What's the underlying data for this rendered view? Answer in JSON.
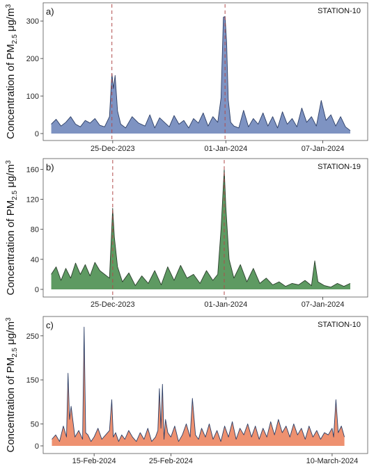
{
  "chart_data": [
    {
      "type": "area",
      "panel_label": "a)",
      "station": "STATION-10",
      "ylabel": "Concentration of PM2.5 μg/m3",
      "ylabel_parts": {
        "base": "Concentration of PM",
        "sub": "2.5",
        "unit": "μg/m",
        "sup": "3"
      },
      "ylim": [
        0,
        330
      ],
      "yticks": [
        0,
        100,
        200,
        300
      ],
      "x_range": [
        0,
        19
      ],
      "xticks": [
        {
          "x": 4.0,
          "label": "25-Dec-2023"
        },
        {
          "x": 11.0,
          "label": "01-Jan-2024"
        },
        {
          "x": 17.0,
          "label": "07-Jan-2024"
        }
      ],
      "vlines": [
        3.95,
        10.95
      ],
      "fill": "#7E93C2",
      "stroke": "#2C3E66",
      "x": [
        0.2,
        0.5,
        0.8,
        1.1,
        1.4,
        1.7,
        2.0,
        2.3,
        2.6,
        2.9,
        3.2,
        3.5,
        3.8,
        3.95,
        4.05,
        4.15,
        4.3,
        4.5,
        4.8,
        5.2,
        5.6,
        6.0,
        6.3,
        6.6,
        6.9,
        7.2,
        7.5,
        7.8,
        8.1,
        8.4,
        8.7,
        9.0,
        9.3,
        9.6,
        9.9,
        10.2,
        10.5,
        10.7,
        10.85,
        10.95,
        11.05,
        11.15,
        11.3,
        11.5,
        11.8,
        12.1,
        12.4,
        12.7,
        13.0,
        13.3,
        13.6,
        13.9,
        14.2,
        14.5,
        14.8,
        15.1,
        15.4,
        15.7,
        16.0,
        16.3,
        16.6,
        16.9,
        17.2,
        17.5,
        17.8,
        18.1,
        18.4,
        18.7
      ],
      "y": [
        25,
        38,
        20,
        30,
        45,
        25,
        18,
        35,
        28,
        40,
        22,
        18,
        45,
        160,
        120,
        155,
        60,
        25,
        15,
        45,
        28,
        20,
        50,
        15,
        42,
        30,
        18,
        48,
        25,
        35,
        15,
        40,
        28,
        55,
        20,
        45,
        30,
        95,
        310,
        312,
        240,
        90,
        30,
        20,
        15,
        62,
        18,
        40,
        25,
        55,
        20,
        45,
        15,
        58,
        25,
        40,
        18,
        68,
        30,
        45,
        20,
        88,
        35,
        50,
        20,
        45,
        18,
        8
      ]
    },
    {
      "type": "area",
      "panel_label": "b)",
      "station": "STATION-19",
      "ylabel": "Concentration of PM2.5 μg/m3",
      "ylabel_parts": {
        "base": "Concentration of PM",
        "sub": "2.5",
        "unit": "μg/m",
        "sup": "3"
      },
      "ylim": [
        0,
        165
      ],
      "yticks": [
        0,
        40,
        80,
        120,
        160
      ],
      "x_range": [
        0,
        19
      ],
      "xticks": [
        {
          "x": 4.0,
          "label": "25-Dec-2023"
        },
        {
          "x": 11.0,
          "label": "01-Jan-2024"
        },
        {
          "x": 17.0,
          "label": "07-Jan-2024"
        }
      ],
      "vlines": [
        4.0,
        10.9
      ],
      "fill": "#5E9A62",
      "stroke": "#2A3F2C",
      "x": [
        0.2,
        0.5,
        0.8,
        1.1,
        1.4,
        1.7,
        2.0,
        2.3,
        2.6,
        2.9,
        3.2,
        3.5,
        3.8,
        4.0,
        4.1,
        4.3,
        4.6,
        5.0,
        5.4,
        5.8,
        6.2,
        6.6,
        7.0,
        7.4,
        7.8,
        8.2,
        8.6,
        9.0,
        9.4,
        9.8,
        10.2,
        10.5,
        10.7,
        10.9,
        11.0,
        11.2,
        11.5,
        11.9,
        12.3,
        12.7,
        13.1,
        13.5,
        13.9,
        14.3,
        14.7,
        15.1,
        15.5,
        15.9,
        16.3,
        16.5,
        16.7,
        17.1,
        17.5,
        17.9,
        18.3,
        18.7
      ],
      "y": [
        20,
        30,
        12,
        28,
        15,
        35,
        20,
        33,
        18,
        36,
        25,
        20,
        15,
        108,
        70,
        30,
        10,
        22,
        5,
        18,
        8,
        25,
        6,
        30,
        12,
        32,
        15,
        20,
        8,
        25,
        12,
        20,
        80,
        160,
        110,
        40,
        15,
        33,
        10,
        28,
        8,
        15,
        6,
        10,
        4,
        8,
        6,
        12,
        5,
        38,
        10,
        5,
        3,
        8,
        4,
        8
      ]
    },
    {
      "type": "area",
      "panel_label": "c)",
      "station": "STATION-10",
      "ylabel": "Concentration of PM2.5 μg/m3",
      "ylabel_parts": {
        "base": "Concentration of PM",
        "sub": "2.5",
        "unit": "μg/m",
        "sup": "3"
      },
      "ylim": [
        0,
        275
      ],
      "yticks": [
        0,
        50,
        150,
        250
      ],
      "x_range": [
        0,
        40
      ],
      "xticks": [
        {
          "x": 6.0,
          "label": "15-Feb-2024"
        },
        {
          "x": 16.0,
          "label": "25-Feb-2024"
        },
        {
          "x": 37.0,
          "label": "10-March-2024"
        }
      ],
      "vlines": [],
      "fill": "#EE9170",
      "stroke": "#2C3E66",
      "x": [
        0.5,
        1.0,
        1.5,
        2.0,
        2.4,
        2.6,
        2.8,
        3.0,
        3.5,
        4.0,
        4.5,
        4.7,
        4.9,
        5.2,
        5.6,
        6.0,
        6.5,
        7.0,
        7.5,
        8.0,
        8.3,
        8.5,
        8.8,
        9.2,
        9.6,
        10.0,
        10.5,
        11.0,
        11.5,
        12.0,
        12.5,
        13.0,
        13.5,
        14.0,
        14.3,
        14.5,
        14.7,
        14.9,
        15.1,
        15.3,
        15.6,
        16.0,
        16.5,
        17.0,
        17.5,
        18.0,
        18.5,
        18.8,
        19.2,
        19.6,
        20.0,
        20.5,
        21.0,
        21.5,
        22.0,
        22.5,
        23.0,
        23.5,
        24.0,
        24.5,
        25.0,
        25.5,
        26.0,
        26.5,
        27.0,
        27.5,
        28.0,
        28.5,
        29.0,
        29.5,
        30.0,
        30.5,
        31.0,
        31.5,
        32.0,
        32.5,
        33.0,
        33.5,
        34.0,
        34.5,
        35.0,
        35.5,
        36.0,
        36.5,
        37.0,
        37.2,
        37.5,
        37.8,
        38.2,
        38.6
      ],
      "y": [
        15,
        25,
        10,
        45,
        20,
        165,
        60,
        90,
        20,
        35,
        15,
        270,
        30,
        25,
        10,
        20,
        40,
        15,
        25,
        35,
        105,
        20,
        30,
        10,
        25,
        15,
        35,
        20,
        10,
        30,
        15,
        40,
        10,
        20,
        35,
        130,
        40,
        140,
        15,
        60,
        30,
        20,
        45,
        10,
        25,
        50,
        20,
        108,
        25,
        15,
        40,
        20,
        50,
        15,
        35,
        10,
        45,
        20,
        55,
        15,
        40,
        25,
        50,
        20,
        45,
        15,
        40,
        20,
        55,
        25,
        60,
        30,
        45,
        20,
        50,
        25,
        40,
        15,
        45,
        20,
        35,
        15,
        30,
        25,
        40,
        20,
        105,
        30,
        45,
        20
      ]
    }
  ]
}
